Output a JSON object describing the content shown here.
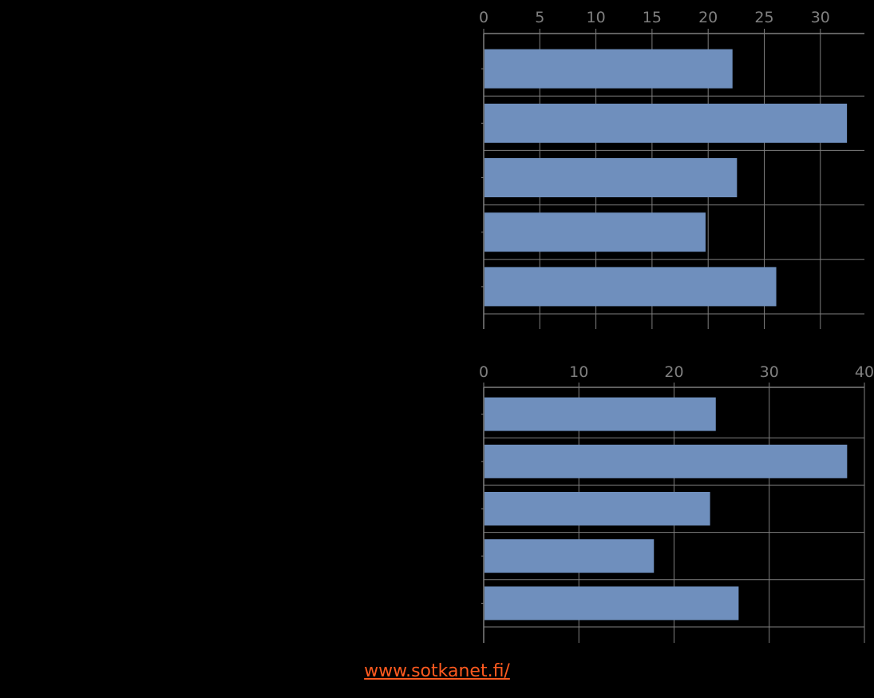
{
  "colors": {
    "background": "#000000",
    "bar": "#6f8fbd",
    "grid": "#7f7f7f",
    "tick_text": "#7f7f7f",
    "link": "#ff5a1f"
  },
  "chart_data": [
    {
      "type": "bar",
      "orientation": "horizontal",
      "categories": [
        "",
        "",
        "",
        "",
        ""
      ],
      "values": [
        22.1,
        32.3,
        22.5,
        19.7,
        26.0
      ],
      "xlim": [
        0,
        34
      ],
      "xticks": [
        "0",
        "5",
        "10",
        "15",
        "20",
        "25",
        "30"
      ],
      "grid": true,
      "legend": "none"
    },
    {
      "type": "bar",
      "orientation": "horizontal",
      "categories": [
        "",
        "",
        "",
        "",
        ""
      ],
      "values": [
        24.3,
        38.1,
        23.7,
        17.8,
        26.7
      ],
      "xlim": [
        0,
        40
      ],
      "xticks": [
        "0",
        "10",
        "20",
        "30",
        "40"
      ],
      "grid": true,
      "legend": "none"
    }
  ],
  "footer": {
    "link_text": "www.sotkanet.fi/"
  }
}
